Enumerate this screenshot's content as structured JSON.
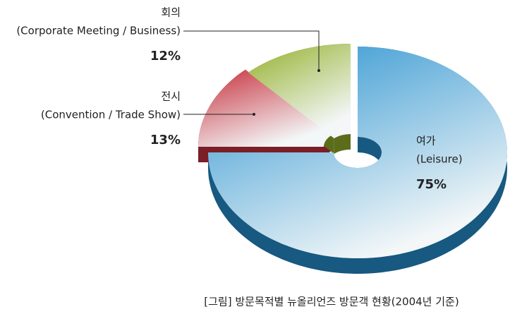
{
  "chart_data": {
    "type": "pie",
    "categories": [
      "여가",
      "전시",
      "회의"
    ],
    "category_details": [
      "(Leisure)",
      "(Convention / Trade Show)",
      "(Corporate Meeting / Business)"
    ],
    "values": [
      75,
      13,
      12
    ],
    "value_labels": [
      "75%",
      "13%",
      "12%"
    ],
    "colors": [
      "#2590cf",
      "#c7313d",
      "#93b02a"
    ],
    "caption": "[그림] 방문목적별 뉴올리언즈 방문객 현황(2004년 기준)"
  }
}
